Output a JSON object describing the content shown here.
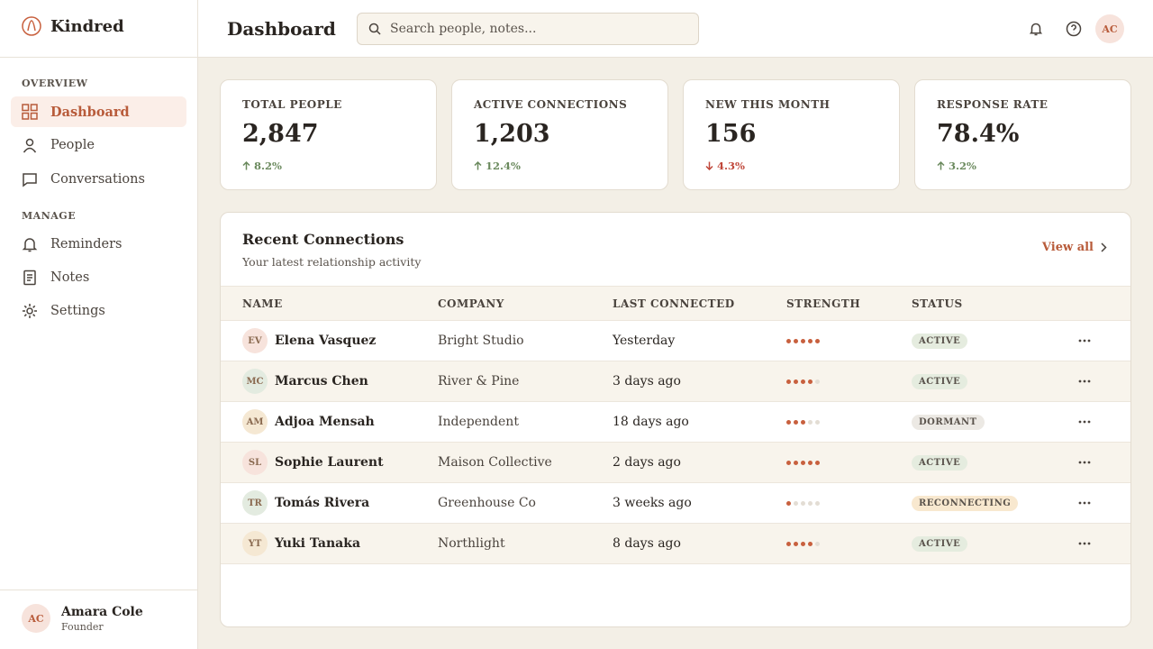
{
  "brand": "Kindred",
  "sidebar": {
    "sections": [
      {
        "title": "OVERVIEW",
        "items": [
          "Dashboard",
          "People",
          "Conversations"
        ]
      },
      {
        "title": "MANAGE",
        "items": [
          "Reminders",
          "Notes",
          "Settings"
        ]
      }
    ]
  },
  "user": {
    "initials": "AC",
    "name": "Amara Cole",
    "role": "Founder"
  },
  "header": {
    "title": "Dashboard",
    "search_placeholder": "Search people, notes...",
    "avatar": "AC"
  },
  "stats": [
    {
      "label": "TOTAL PEOPLE",
      "value": "2,847",
      "change": "8.2%",
      "trend": "up"
    },
    {
      "label": "ACTIVE CONNECTIONS",
      "value": "1,203",
      "change": "12.4%",
      "trend": "up"
    },
    {
      "label": "NEW THIS MONTH",
      "value": "156",
      "change": "4.3%",
      "trend": "down"
    },
    {
      "label": "RESPONSE RATE",
      "value": "78.4%",
      "change": "3.2%",
      "trend": "up"
    }
  ],
  "table": {
    "title": "Recent Connections",
    "subtitle": "Your latest relationship activity",
    "link": "View all",
    "strength_scale": 5,
    "columns": [
      "NAME",
      "COMPANY",
      "LAST CONNECTED",
      "STRENGTH",
      "STATUS"
    ],
    "rows": [
      {
        "initials": "EV",
        "name": "Elena Vasquez",
        "company": "Bright Studio",
        "last_connected": "Yesterday",
        "strength": 5,
        "status": "ACTIVE",
        "avatar_color": "#f7e3dc",
        "status_color": "#e5ecdf"
      },
      {
        "initials": "MC",
        "name": "Marcus Chen",
        "company": "River & Pine",
        "last_connected": "3 days ago",
        "strength": 4,
        "status": "ACTIVE",
        "avatar_color": "#e3ebe0",
        "status_color": "#e5ecdf"
      },
      {
        "initials": "AM",
        "name": "Adjoa Mensah",
        "company": "Independent",
        "last_connected": "18 days ago",
        "strength": 3,
        "status": "DORMANT",
        "avatar_color": "#f5e8d3",
        "status_color": "#ece9e4"
      },
      {
        "initials": "SL",
        "name": "Sophie Laurent",
        "company": "Maison Collective",
        "last_connected": "2 days ago",
        "strength": 5,
        "status": "ACTIVE",
        "avatar_color": "#f7e3dc",
        "status_color": "#e5ecdf"
      },
      {
        "initials": "TR",
        "name": "Tomás Rivera",
        "company": "Greenhouse Co",
        "last_connected": "3 weeks ago",
        "strength": 1,
        "status": "RECONNECTING",
        "avatar_color": "#e3ebe0",
        "status_color": "#f8e8cf"
      },
      {
        "initials": "YT",
        "name": "Yuki Tanaka",
        "company": "Northlight",
        "last_connected": "8 days ago",
        "strength": 4,
        "status": "ACTIVE",
        "avatar_color": "#f5e8d3",
        "status_color": "#e5ecdf"
      }
    ]
  }
}
